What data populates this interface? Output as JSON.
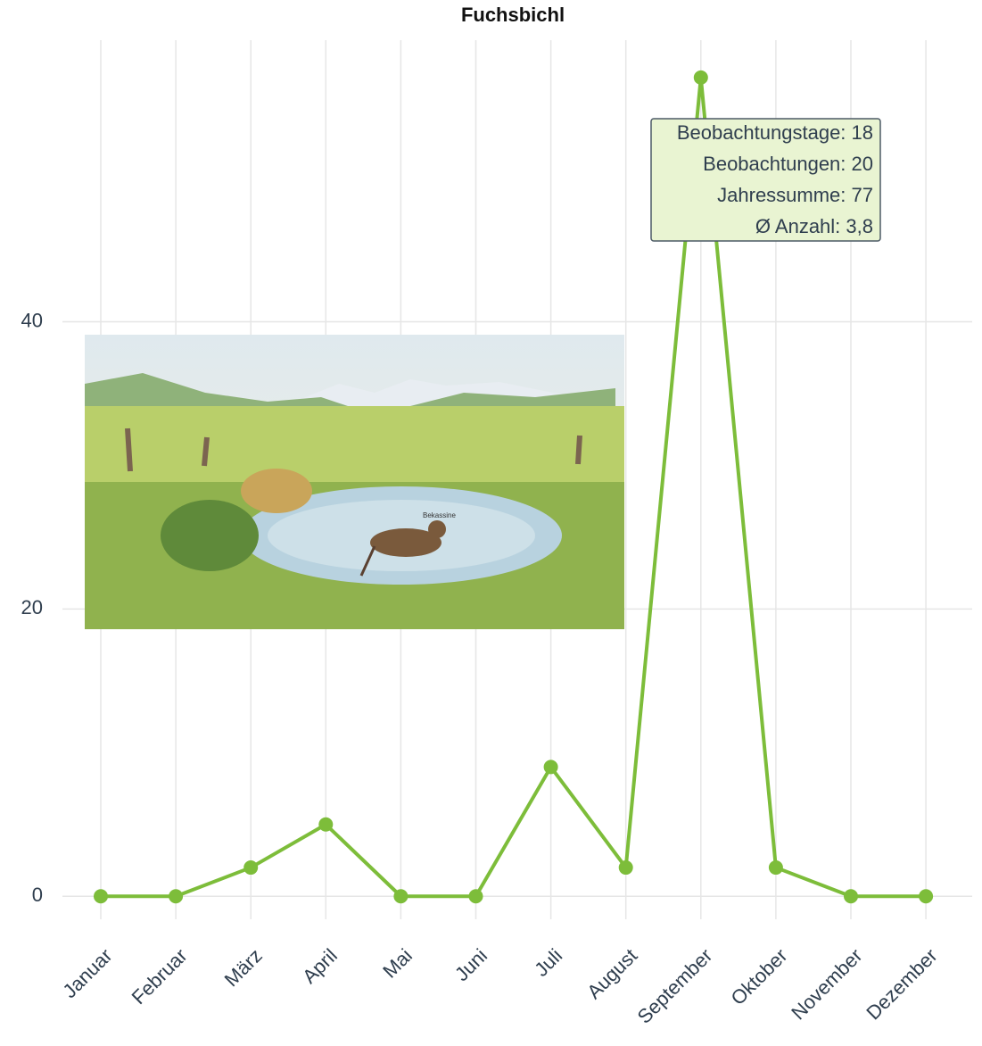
{
  "chart_data": {
    "type": "line",
    "title": "Fuchsbichl",
    "categories": [
      "Januar",
      "Februar",
      "März",
      "April",
      "Mai",
      "Juni",
      "Juli",
      "August",
      "September",
      "Oktober",
      "November",
      "Dezember"
    ],
    "series": [
      {
        "color": "#7dbd3a",
        "values": [
          0,
          0,
          2,
          5,
          0,
          0,
          9,
          2,
          57,
          2,
          0,
          0
        ]
      }
    ],
    "ylim": [
      -1.6,
      59.6
    ],
    "yticks": [
      0,
      20,
      40
    ],
    "grid": true,
    "tooltip": {
      "category_index": 8,
      "lines": [
        "Beobachtungstage: 18",
        "Beobachtungen: 20",
        "Jahressumme: 77",
        "Ø Anzahl: 3,8"
      ]
    },
    "image_label": "Bekassine"
  }
}
